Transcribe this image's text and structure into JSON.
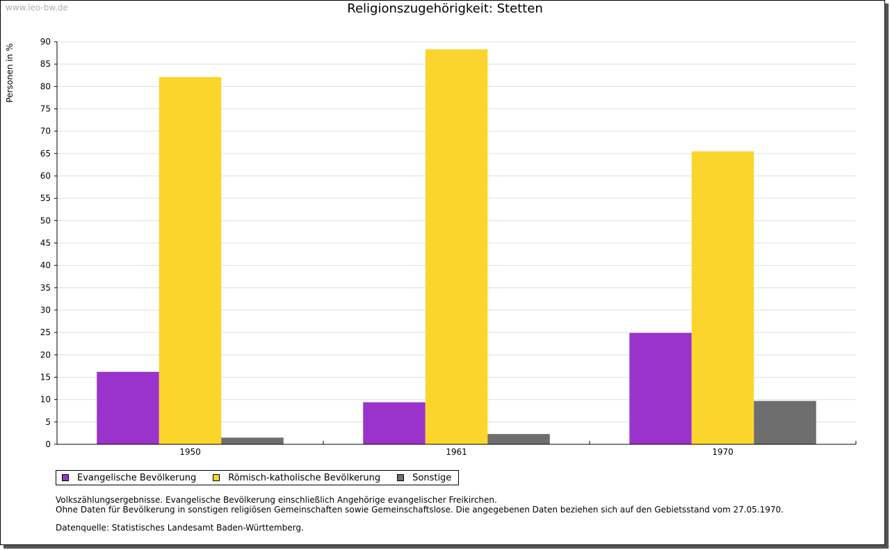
{
  "watermark": "www.leo-bw.de",
  "title": "Religionszugehörigkeit: Stetten",
  "chart_data": {
    "type": "bar",
    "title": "Religionszugehörigkeit: Stetten",
    "xlabel": "",
    "ylabel": "Personen in %",
    "ylim": [
      0,
      90
    ],
    "yticks": [
      0,
      5,
      10,
      15,
      20,
      25,
      30,
      35,
      40,
      45,
      50,
      55,
      60,
      65,
      70,
      75,
      80,
      85,
      90
    ],
    "grid": true,
    "legend_position": "bottom-left",
    "categories": [
      "1950",
      "1961",
      "1970"
    ],
    "series": [
      {
        "name": "Evangelische Bevölkerung",
        "color": "#9933cc",
        "values": [
          16.2,
          9.4,
          24.9
        ]
      },
      {
        "name": "Römisch-katholische Bevölkerung",
        "color": "#fcd52c",
        "values": [
          82.1,
          88.3,
          65.5
        ]
      },
      {
        "name": "Sonstige",
        "color": "#6e6e6e",
        "values": [
          1.5,
          2.3,
          9.7
        ]
      }
    ]
  },
  "notes": {
    "line1": "Volkszählungsergebnisse. Evangelische Bevölkerung einschließlich Angehörige evangelischer Freikirchen.",
    "line2": "Ohne Daten für Bevölkerung in sonstigen religiösen Gemeinschaften sowie Gemeinschaftslose. Die angegebenen Daten beziehen sich auf den Gebietsstand vom 27.05.1970.",
    "source": "Datenquelle: Statistisches Landesamt Baden-Württemberg."
  }
}
